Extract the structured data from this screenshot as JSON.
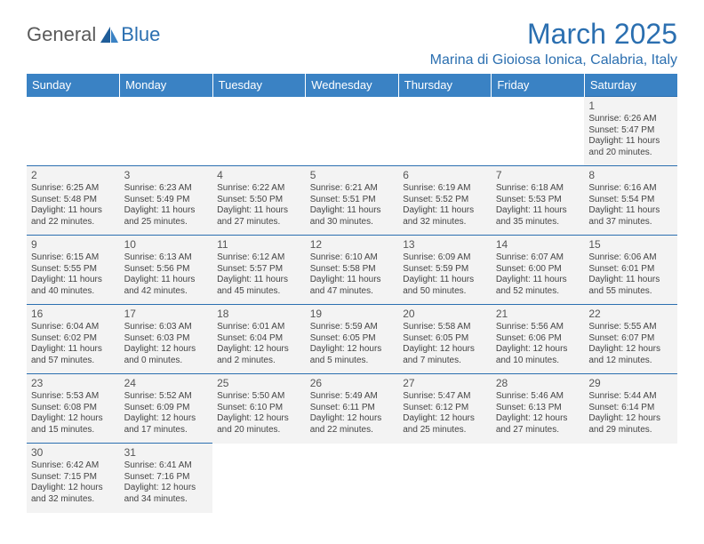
{
  "logo": {
    "part1": "General",
    "part2": "Blue"
  },
  "title": "March 2025",
  "location": "Marina di Gioiosa Ionica, Calabria, Italy",
  "day_headers": [
    "Sunday",
    "Monday",
    "Tuesday",
    "Wednesday",
    "Thursday",
    "Friday",
    "Saturday"
  ],
  "colors": {
    "header_bg": "#3a82c4",
    "accent": "#2b6fb0",
    "cell_bg": "#f3f3f3"
  },
  "weeks": [
    [
      null,
      null,
      null,
      null,
      null,
      null,
      {
        "n": "1",
        "sr": "Sunrise: 6:26 AM",
        "ss": "Sunset: 5:47 PM",
        "d1": "Daylight: 11 hours",
        "d2": "and 20 minutes."
      }
    ],
    [
      {
        "n": "2",
        "sr": "Sunrise: 6:25 AM",
        "ss": "Sunset: 5:48 PM",
        "d1": "Daylight: 11 hours",
        "d2": "and 22 minutes."
      },
      {
        "n": "3",
        "sr": "Sunrise: 6:23 AM",
        "ss": "Sunset: 5:49 PM",
        "d1": "Daylight: 11 hours",
        "d2": "and 25 minutes."
      },
      {
        "n": "4",
        "sr": "Sunrise: 6:22 AM",
        "ss": "Sunset: 5:50 PM",
        "d1": "Daylight: 11 hours",
        "d2": "and 27 minutes."
      },
      {
        "n": "5",
        "sr": "Sunrise: 6:21 AM",
        "ss": "Sunset: 5:51 PM",
        "d1": "Daylight: 11 hours",
        "d2": "and 30 minutes."
      },
      {
        "n": "6",
        "sr": "Sunrise: 6:19 AM",
        "ss": "Sunset: 5:52 PM",
        "d1": "Daylight: 11 hours",
        "d2": "and 32 minutes."
      },
      {
        "n": "7",
        "sr": "Sunrise: 6:18 AM",
        "ss": "Sunset: 5:53 PM",
        "d1": "Daylight: 11 hours",
        "d2": "and 35 minutes."
      },
      {
        "n": "8",
        "sr": "Sunrise: 6:16 AM",
        "ss": "Sunset: 5:54 PM",
        "d1": "Daylight: 11 hours",
        "d2": "and 37 minutes."
      }
    ],
    [
      {
        "n": "9",
        "sr": "Sunrise: 6:15 AM",
        "ss": "Sunset: 5:55 PM",
        "d1": "Daylight: 11 hours",
        "d2": "and 40 minutes."
      },
      {
        "n": "10",
        "sr": "Sunrise: 6:13 AM",
        "ss": "Sunset: 5:56 PM",
        "d1": "Daylight: 11 hours",
        "d2": "and 42 minutes."
      },
      {
        "n": "11",
        "sr": "Sunrise: 6:12 AM",
        "ss": "Sunset: 5:57 PM",
        "d1": "Daylight: 11 hours",
        "d2": "and 45 minutes."
      },
      {
        "n": "12",
        "sr": "Sunrise: 6:10 AM",
        "ss": "Sunset: 5:58 PM",
        "d1": "Daylight: 11 hours",
        "d2": "and 47 minutes."
      },
      {
        "n": "13",
        "sr": "Sunrise: 6:09 AM",
        "ss": "Sunset: 5:59 PM",
        "d1": "Daylight: 11 hours",
        "d2": "and 50 minutes."
      },
      {
        "n": "14",
        "sr": "Sunrise: 6:07 AM",
        "ss": "Sunset: 6:00 PM",
        "d1": "Daylight: 11 hours",
        "d2": "and 52 minutes."
      },
      {
        "n": "15",
        "sr": "Sunrise: 6:06 AM",
        "ss": "Sunset: 6:01 PM",
        "d1": "Daylight: 11 hours",
        "d2": "and 55 minutes."
      }
    ],
    [
      {
        "n": "16",
        "sr": "Sunrise: 6:04 AM",
        "ss": "Sunset: 6:02 PM",
        "d1": "Daylight: 11 hours",
        "d2": "and 57 minutes."
      },
      {
        "n": "17",
        "sr": "Sunrise: 6:03 AM",
        "ss": "Sunset: 6:03 PM",
        "d1": "Daylight: 12 hours",
        "d2": "and 0 minutes."
      },
      {
        "n": "18",
        "sr": "Sunrise: 6:01 AM",
        "ss": "Sunset: 6:04 PM",
        "d1": "Daylight: 12 hours",
        "d2": "and 2 minutes."
      },
      {
        "n": "19",
        "sr": "Sunrise: 5:59 AM",
        "ss": "Sunset: 6:05 PM",
        "d1": "Daylight: 12 hours",
        "d2": "and 5 minutes."
      },
      {
        "n": "20",
        "sr": "Sunrise: 5:58 AM",
        "ss": "Sunset: 6:05 PM",
        "d1": "Daylight: 12 hours",
        "d2": "and 7 minutes."
      },
      {
        "n": "21",
        "sr": "Sunrise: 5:56 AM",
        "ss": "Sunset: 6:06 PM",
        "d1": "Daylight: 12 hours",
        "d2": "and 10 minutes."
      },
      {
        "n": "22",
        "sr": "Sunrise: 5:55 AM",
        "ss": "Sunset: 6:07 PM",
        "d1": "Daylight: 12 hours",
        "d2": "and 12 minutes."
      }
    ],
    [
      {
        "n": "23",
        "sr": "Sunrise: 5:53 AM",
        "ss": "Sunset: 6:08 PM",
        "d1": "Daylight: 12 hours",
        "d2": "and 15 minutes."
      },
      {
        "n": "24",
        "sr": "Sunrise: 5:52 AM",
        "ss": "Sunset: 6:09 PM",
        "d1": "Daylight: 12 hours",
        "d2": "and 17 minutes."
      },
      {
        "n": "25",
        "sr": "Sunrise: 5:50 AM",
        "ss": "Sunset: 6:10 PM",
        "d1": "Daylight: 12 hours",
        "d2": "and 20 minutes."
      },
      {
        "n": "26",
        "sr": "Sunrise: 5:49 AM",
        "ss": "Sunset: 6:11 PM",
        "d1": "Daylight: 12 hours",
        "d2": "and 22 minutes."
      },
      {
        "n": "27",
        "sr": "Sunrise: 5:47 AM",
        "ss": "Sunset: 6:12 PM",
        "d1": "Daylight: 12 hours",
        "d2": "and 25 minutes."
      },
      {
        "n": "28",
        "sr": "Sunrise: 5:46 AM",
        "ss": "Sunset: 6:13 PM",
        "d1": "Daylight: 12 hours",
        "d2": "and 27 minutes."
      },
      {
        "n": "29",
        "sr": "Sunrise: 5:44 AM",
        "ss": "Sunset: 6:14 PM",
        "d1": "Daylight: 12 hours",
        "d2": "and 29 minutes."
      }
    ],
    [
      {
        "n": "30",
        "sr": "Sunrise: 6:42 AM",
        "ss": "Sunset: 7:15 PM",
        "d1": "Daylight: 12 hours",
        "d2": "and 32 minutes."
      },
      {
        "n": "31",
        "sr": "Sunrise: 6:41 AM",
        "ss": "Sunset: 7:16 PM",
        "d1": "Daylight: 12 hours",
        "d2": "and 34 minutes."
      },
      null,
      null,
      null,
      null,
      null
    ]
  ]
}
